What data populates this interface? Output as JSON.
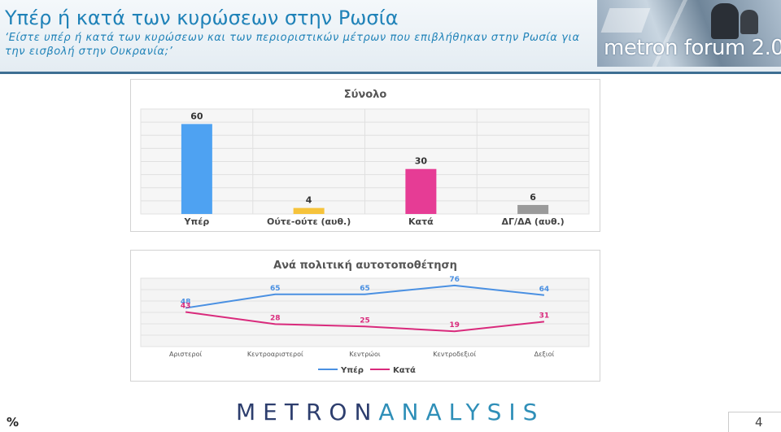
{
  "header": {
    "title": "Υπέρ ή κατά των κυρώσεων στην Ρωσία",
    "subtitle": "‘Είστε υπέρ ή κατά των κυρώσεων και των περιοριστικών μέτρων που επιβλήθηκαν στην Ρωσία για την εισβολή στην Ουκρανία;’"
  },
  "logo": {
    "text": "metron forum 2.0"
  },
  "colors": {
    "title": "#1f82b8",
    "yper": "#4ea2f2",
    "outeoute": "#f6c33b",
    "kata": "#e63c95",
    "dg": "#9a9a9a",
    "line_yper": "#4a90e2",
    "line_kata": "#d92a7c"
  },
  "chart_data": [
    {
      "type": "bar",
      "title": "Σύνολο",
      "categories": [
        "Υπέρ",
        "Ούτε-ούτε (αυθ.)",
        "Κατά",
        "ΔΓ/ΔΑ (αυθ.)"
      ],
      "values": [
        60,
        4,
        30,
        6
      ],
      "ylim": [
        0,
        70
      ],
      "grid": true
    },
    {
      "type": "line",
      "title": "Ανά πολιτική αυτοτοποθέτηση",
      "categories": [
        "Αριστεροί",
        "Κεντροαριστεροί",
        "Κεντρώοι",
        "Κεντροδεξιοί",
        "Δεξιοί"
      ],
      "series": [
        {
          "name": "Υπέρ",
          "values": [
            48,
            65,
            65,
            76,
            64
          ]
        },
        {
          "name": "Κατά",
          "values": [
            43,
            28,
            25,
            19,
            31
          ]
        }
      ],
      "ylim": [
        0,
        85
      ],
      "legend": "bottom",
      "grid": true
    }
  ],
  "footer": {
    "brand_part1": "METRON",
    "brand_part2": "ANALYSIS",
    "unit": "%",
    "page": "4"
  }
}
